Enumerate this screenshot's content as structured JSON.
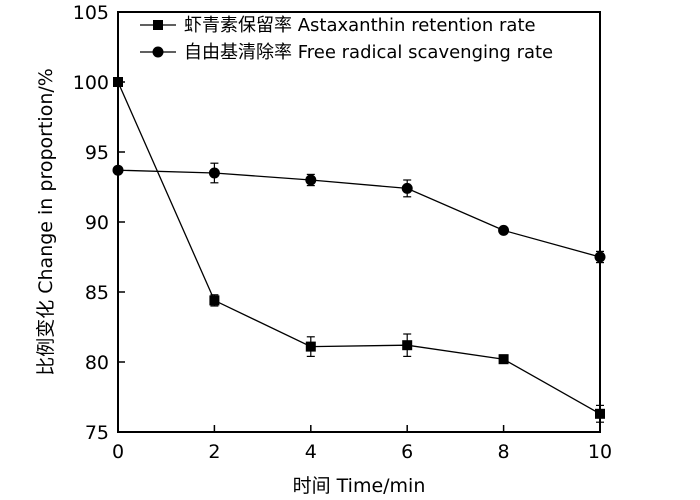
{
  "chart_data": {
    "type": "line",
    "xlabel": "时间 Time/min",
    "ylabel": "比例变化 Change in proportion/%",
    "xlim": [
      0,
      10
    ],
    "ylim": [
      75,
      105
    ],
    "x_ticks": [
      "0",
      "2",
      "4",
      "6",
      "8",
      "10"
    ],
    "y_ticks": [
      "75",
      "80",
      "85",
      "90",
      "95",
      "100",
      "105"
    ],
    "legend_position": "top-right",
    "grid": false,
    "x": [
      0,
      2,
      4,
      6,
      8,
      10
    ],
    "series": [
      {
        "name": "虾青素保留率 Astaxanthin retention rate",
        "marker": "square",
        "values": [
          100.0,
          84.4,
          81.1,
          81.2,
          80.2,
          76.3
        ],
        "errors": [
          0.0,
          0.4,
          0.7,
          0.8,
          0.3,
          0.6
        ]
      },
      {
        "name": "自由基清除率 Free radical scavenging rate",
        "marker": "circle",
        "values": [
          93.7,
          93.5,
          93.0,
          92.4,
          89.4,
          87.5
        ],
        "errors": [
          0.0,
          0.7,
          0.4,
          0.6,
          0.2,
          0.4
        ]
      }
    ]
  }
}
